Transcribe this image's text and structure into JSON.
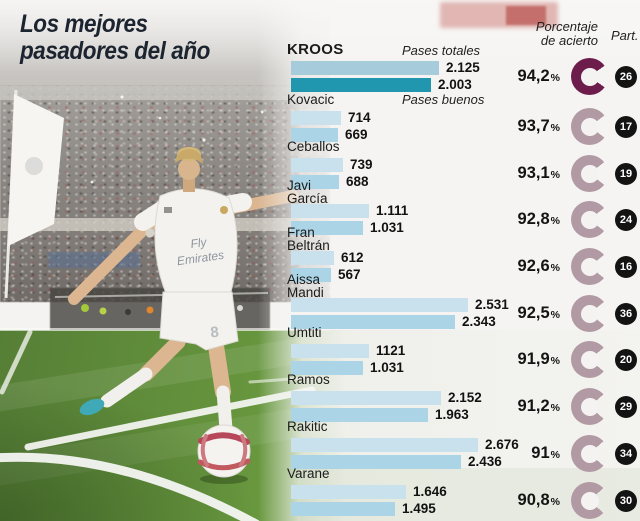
{
  "title": {
    "line1": "Los mejores",
    "line2": "pasadores del año"
  },
  "headers": {
    "series1": "Pases totales",
    "series2": "Pases buenos",
    "pct_line1": "Porcentaje",
    "pct_line2": "de acierto",
    "part": "Part."
  },
  "photo": {
    "shirt_sponsor_line1": "Fly",
    "shirt_sponsor_line2": "Emirates",
    "shorts_number": "8"
  },
  "colors": {
    "background": "#f4f3f1",
    "bar_total": "#c8e1ed",
    "bar_buenos": "#abd4e6",
    "bar_total_highlight": "#a6cbda",
    "bar_buenos_highlight": "#2097ae",
    "donut": "#b29aa4",
    "donut_highlight": "#6d1d4b",
    "badge": "#131313",
    "title_text": "#1c2430",
    "pitch_green": "#69993f"
  },
  "chart_data": {
    "type": "bar",
    "orientation": "horizontal",
    "title": "Los mejores pasadores del año",
    "series": [
      {
        "name": "Pases totales"
      },
      {
        "name": "Pases buenos"
      }
    ],
    "value_axis": {
      "min": 0,
      "max": 2676,
      "gridlines": false
    },
    "legend_position": "inline-first-rows",
    "players": [
      {
        "name": "KROOS",
        "name_lines": [
          "KROOS"
        ],
        "pases_totales": 2125,
        "pases_totales_label": "2.125",
        "pases_buenos": 2003,
        "pases_buenos_label": "2.003",
        "porcentaje_acierto": 94.2,
        "porcentaje_label": "94,2",
        "partidos": 26,
        "partidos_label": "26",
        "highlight": true
      },
      {
        "name": "Kovacic",
        "name_lines": [
          "Kovacic"
        ],
        "pases_totales": 714,
        "pases_totales_label": "714",
        "pases_buenos": 669,
        "pases_buenos_label": "669",
        "porcentaje_acierto": 93.7,
        "porcentaje_label": "93,7",
        "partidos": 17,
        "partidos_label": "17",
        "highlight": false
      },
      {
        "name": "Ceballos",
        "name_lines": [
          "Ceballos"
        ],
        "pases_totales": 739,
        "pases_totales_label": "739",
        "pases_buenos": 688,
        "pases_buenos_label": "688",
        "porcentaje_acierto": 93.1,
        "porcentaje_label": "93,1",
        "partidos": 19,
        "partidos_label": "19",
        "highlight": false
      },
      {
        "name": "Javi García",
        "name_lines": [
          "Javi",
          "García"
        ],
        "pases_totales": 1111,
        "pases_totales_label": "1.111",
        "pases_buenos": 1031,
        "pases_buenos_label": "1.031",
        "porcentaje_acierto": 92.8,
        "porcentaje_label": "92,8",
        "partidos": 24,
        "partidos_label": "24",
        "highlight": false
      },
      {
        "name": "Fran Beltrán",
        "name_lines": [
          "Fran",
          "Beltrán"
        ],
        "pases_totales": 612,
        "pases_totales_label": "612",
        "pases_buenos": 567,
        "pases_buenos_label": "567",
        "porcentaje_acierto": 92.6,
        "porcentaje_label": "92,6",
        "partidos": 16,
        "partidos_label": "16",
        "highlight": false
      },
      {
        "name": "Aissa Mandi",
        "name_lines": [
          "Aissa",
          "Mandi"
        ],
        "pases_totales": 2531,
        "pases_totales_label": "2.531",
        "pases_buenos": 2343,
        "pases_buenos_label": "2.343",
        "porcentaje_acierto": 92.5,
        "porcentaje_label": "92,5",
        "partidos": 36,
        "partidos_label": "36",
        "highlight": false
      },
      {
        "name": "Umtiti",
        "name_lines": [
          "Umtiti"
        ],
        "pases_totales": 1121,
        "pases_totales_label": "1121",
        "pases_buenos": 1031,
        "pases_buenos_label": "1.031",
        "porcentaje_acierto": 91.9,
        "porcentaje_label": "91,9",
        "partidos": 20,
        "partidos_label": "20",
        "highlight": false
      },
      {
        "name": "Ramos",
        "name_lines": [
          "Ramos"
        ],
        "pases_totales": 2152,
        "pases_totales_label": "2.152",
        "pases_buenos": 1963,
        "pases_buenos_label": "1.963",
        "porcentaje_acierto": 91.2,
        "porcentaje_label": "91,2",
        "partidos": 29,
        "partidos_label": "29",
        "highlight": false
      },
      {
        "name": "Rakitic",
        "name_lines": [
          "Rakitic"
        ],
        "pases_totales": 2676,
        "pases_totales_label": "2.676",
        "pases_buenos": 2436,
        "pases_buenos_label": "2.436",
        "porcentaje_acierto": 91.0,
        "porcentaje_label": "91",
        "partidos": 34,
        "partidos_label": "34",
        "highlight": false
      },
      {
        "name": "Varane",
        "name_lines": [
          "Varane"
        ],
        "pases_totales": 1646,
        "pases_totales_label": "1.646",
        "pases_buenos": 1495,
        "pases_buenos_label": "1.495",
        "porcentaje_acierto": 90.8,
        "porcentaje_label": "90,8",
        "partidos": 30,
        "partidos_label": "30",
        "highlight": false
      }
    ]
  }
}
